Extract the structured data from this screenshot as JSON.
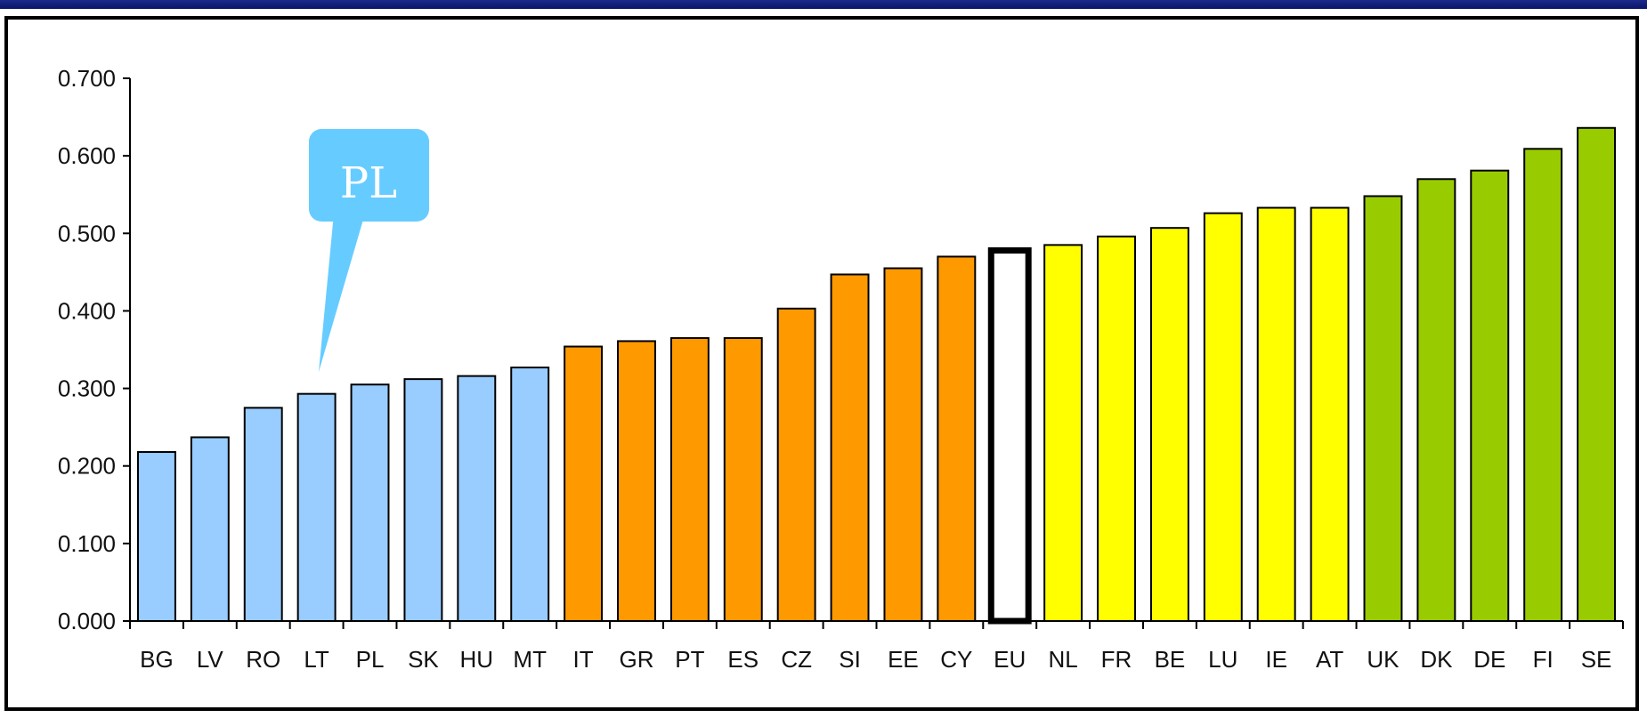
{
  "chart_data": {
    "type": "bar",
    "title": "",
    "xlabel": "",
    "ylabel": "",
    "ylim": [
      0,
      0.7
    ],
    "yticks": [
      "0.000",
      "0.100",
      "0.200",
      "0.300",
      "0.400",
      "0.500",
      "0.600",
      "0.700"
    ],
    "grid": false,
    "categories": [
      "BG",
      "LV",
      "RO",
      "LT",
      "PL",
      "SK",
      "HU",
      "MT",
      "IT",
      "GR",
      "PT",
      "ES",
      "CZ",
      "SI",
      "EE",
      "CY",
      "EU",
      "NL",
      "FR",
      "BE",
      "LU",
      "IE",
      "AT",
      "UK",
      "DK",
      "DE",
      "FI",
      "SE"
    ],
    "values": [
      0.218,
      0.237,
      0.275,
      0.293,
      0.305,
      0.312,
      0.316,
      0.327,
      0.354,
      0.361,
      0.365,
      0.365,
      0.403,
      0.447,
      0.455,
      0.47,
      0.478,
      0.485,
      0.496,
      0.507,
      0.526,
      0.533,
      0.533,
      0.548,
      0.57,
      0.581,
      0.609,
      0.636
    ],
    "group_colors": {
      "light-blue": "#99ccff",
      "orange": "#ff9900",
      "white": "#ffffff",
      "yellow": "#ffff00",
      "green": "#99cc00"
    },
    "bar_groups": [
      "light-blue",
      "light-blue",
      "light-blue",
      "light-blue",
      "light-blue",
      "light-blue",
      "light-blue",
      "light-blue",
      "orange",
      "orange",
      "orange",
      "orange",
      "orange",
      "orange",
      "orange",
      "orange",
      "white",
      "yellow",
      "yellow",
      "yellow",
      "yellow",
      "yellow",
      "yellow",
      "green",
      "green",
      "green",
      "green",
      "green"
    ],
    "annotation": {
      "text": "PL",
      "target": "PL",
      "color": "#66ccff"
    }
  }
}
